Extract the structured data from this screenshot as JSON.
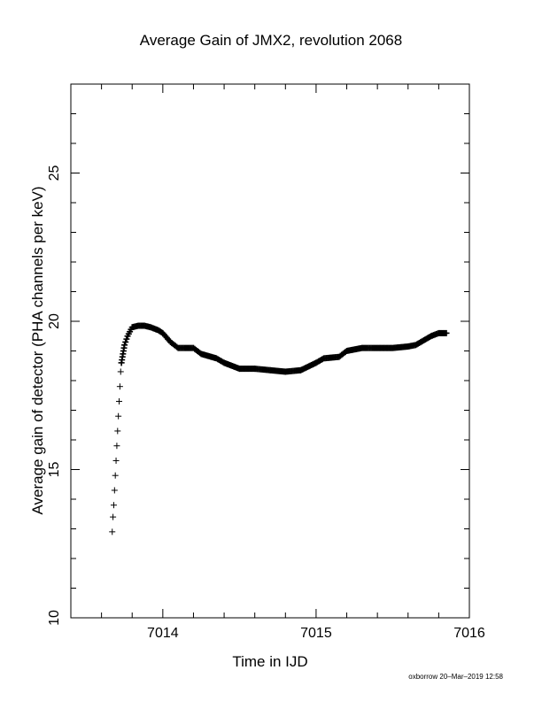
{
  "chart_data": {
    "type": "scatter",
    "title": "Average Gain of JMX2, revolution 2068",
    "xlabel": "Time in IJD",
    "ylabel": "Average gain of detector (PHA channels per keV)",
    "xlim": [
      7013.4,
      7016.0
    ],
    "ylim": [
      10,
      28
    ],
    "xticks": [
      7014,
      7015,
      7016
    ],
    "yticks": [
      10,
      15,
      20,
      25
    ],
    "marker": "+",
    "grid": false,
    "series": [
      {
        "color": "#000000",
        "x": [
          7013.67,
          7013.675,
          7013.68,
          7013.685,
          7013.69,
          7013.695,
          7013.7,
          7013.705,
          7013.71,
          7013.715,
          7013.72,
          7013.725,
          7013.73,
          7013.74,
          7013.75,
          7013.77,
          7013.8,
          7013.84,
          7013.88,
          7013.92,
          7013.97,
          7014.0,
          7014.05,
          7014.1,
          7014.2,
          7014.25,
          7014.35,
          7014.4,
          7014.5,
          7014.6,
          7014.7,
          7014.8,
          7014.9,
          7015.0,
          7015.05,
          7015.15,
          7015.2,
          7015.3,
          7015.4,
          7015.5,
          7015.6,
          7015.65,
          7015.75,
          7015.8,
          7015.85
        ],
        "y": [
          12.9,
          13.4,
          13.8,
          14.3,
          14.8,
          15.3,
          15.8,
          16.3,
          16.8,
          17.3,
          17.8,
          18.3,
          18.6,
          18.9,
          19.2,
          19.5,
          19.8,
          19.85,
          19.85,
          19.8,
          19.7,
          19.6,
          19.3,
          19.1,
          19.1,
          18.9,
          18.75,
          18.6,
          18.4,
          18.4,
          18.35,
          18.3,
          18.35,
          18.6,
          18.75,
          18.8,
          19.0,
          19.1,
          19.1,
          19.1,
          19.15,
          19.2,
          19.5,
          19.6,
          19.6
        ]
      }
    ],
    "footer_note": "oxborrow 20–Mar–2019 12:58"
  }
}
